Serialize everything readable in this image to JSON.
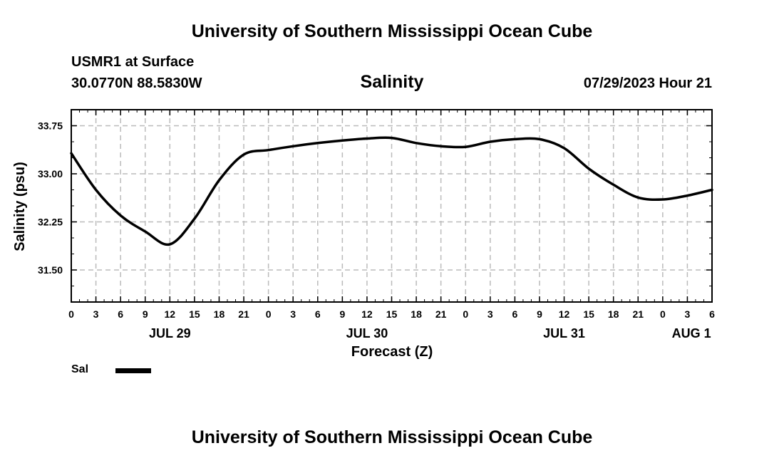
{
  "header": {
    "title": "University of Southern Mississippi Ocean Cube",
    "station": "USMR1 at Surface",
    "coordinates": "30.0770N  88.5830W",
    "variable": "Salinity",
    "datetime": "07/29/2023 Hour 21"
  },
  "footer": {
    "title": "University of Southern Mississippi Ocean Cube"
  },
  "legend": {
    "label": "Sal",
    "color": "#000000"
  },
  "chart_data": {
    "type": "line",
    "title": "Salinity",
    "xlabel": "Forecast (Z)",
    "ylabel": "Salinity (psu)",
    "x_unit": "hours from JUL 29 00Z",
    "xlim": [
      0,
      78
    ],
    "ylim": [
      31.0,
      34.0
    ],
    "x_ticks": [
      0,
      3,
      6,
      9,
      12,
      15,
      18,
      21,
      24,
      27,
      30,
      33,
      36,
      39,
      42,
      45,
      48,
      51,
      54,
      57,
      60,
      63,
      66,
      69,
      72,
      75,
      78
    ],
    "x_tick_labels": [
      "0",
      "3",
      "6",
      "9",
      "12",
      "15",
      "18",
      "21",
      "0",
      "3",
      "6",
      "9",
      "12",
      "15",
      "18",
      "21",
      "0",
      "3",
      "6",
      "9",
      "12",
      "15",
      "18",
      "21",
      "0",
      "3",
      "6"
    ],
    "day_labels": [
      {
        "label": "JUL 29",
        "hour": 12
      },
      {
        "label": "JUL 30",
        "hour": 36
      },
      {
        "label": "JUL 31",
        "hour": 60
      },
      {
        "label": "AUG 1",
        "hour": 75.5
      }
    ],
    "y_ticks": [
      31.5,
      32.25,
      33.0,
      33.75
    ],
    "y_tick_labels": [
      "31.50",
      "32.25",
      "33.00",
      "33.75"
    ],
    "grid": true,
    "series": [
      {
        "name": "Sal",
        "color": "#000000",
        "x": [
          0,
          3,
          6,
          9,
          12,
          15,
          18,
          21,
          24,
          27,
          30,
          33,
          36,
          39,
          42,
          45,
          48,
          51,
          54,
          57,
          60,
          63,
          66,
          69,
          72,
          75,
          78
        ],
        "values": [
          33.32,
          32.75,
          32.35,
          32.1,
          31.9,
          32.3,
          32.9,
          33.3,
          33.37,
          33.43,
          33.48,
          33.52,
          33.55,
          33.56,
          33.48,
          33.43,
          33.42,
          33.5,
          33.54,
          33.54,
          33.4,
          33.08,
          32.83,
          32.63,
          32.6,
          32.66,
          32.75
        ]
      }
    ]
  }
}
